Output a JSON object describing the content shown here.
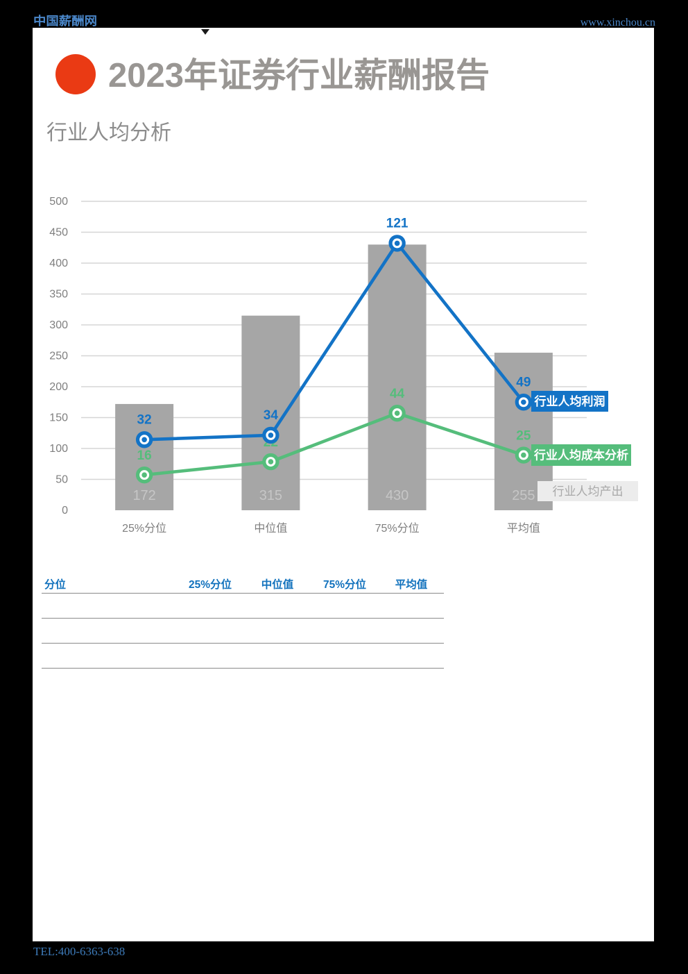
{
  "header": {
    "brand": "中国薪酬网",
    "site": "www.xinchou.cn"
  },
  "title": "2023年证券行业薪酬报告",
  "subtitle": "行业人均分析",
  "footer": {
    "tel": "TEL:400-6363-638"
  },
  "accent_colors": {
    "red_dot": "#ea3a14",
    "blue": "#1373c6",
    "green": "#55bd7b",
    "bar_gray": "#a6a6a6",
    "link_blue": "#4a86c8"
  },
  "chart_data": {
    "type": "combo",
    "categories": [
      "25%分位",
      "中位值",
      "75%分位",
      "平均值"
    ],
    "bar_series": {
      "name": "行业人均产出",
      "values": [
        172,
        315,
        430,
        255
      ],
      "color": "#a6a6a6"
    },
    "line_series": [
      {
        "name": "行业人均利润",
        "values": [
          32,
          34,
          121,
          49
        ],
        "color": "#1373c6"
      },
      {
        "name": "行业人均成本分析",
        "values": [
          16,
          22,
          44,
          25
        ],
        "color": "#55bd7b"
      }
    ],
    "ylim": [
      0,
      500
    ],
    "ytick": 50,
    "secondary_ylim": [
      0,
      140
    ],
    "grid": true,
    "legend_position": "right-of-last-points"
  },
  "table": {
    "headers": [
      "分位",
      "25%分位",
      "中位值",
      "75%分位",
      "平均值"
    ],
    "rows": [
      [
        "",
        "",
        "",
        "",
        ""
      ],
      [
        "",
        "",
        "",
        "",
        ""
      ],
      [
        "",
        "",
        "",
        "",
        ""
      ]
    ]
  }
}
